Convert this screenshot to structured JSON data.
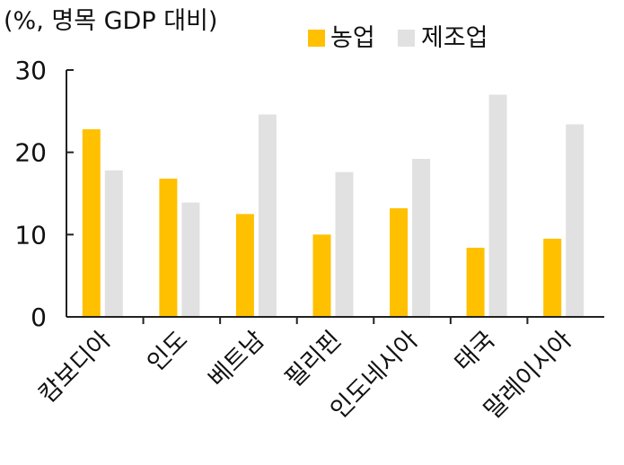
{
  "chart_data": {
    "type": "bar",
    "unit_label": "(%, 명목 GDP 대비)",
    "categories": [
      "캄보디아",
      "인도",
      "베트남",
      "필리핀",
      "인도네시아",
      "태국",
      "말레이시아"
    ],
    "series": [
      {
        "name": "농업",
        "color": "#FFC000",
        "values": [
          22.8,
          16.8,
          12.5,
          10.0,
          13.2,
          8.4,
          9.5
        ]
      },
      {
        "name": "제조업",
        "color": "#E1E1E1",
        "values": [
          17.8,
          13.9,
          24.6,
          17.6,
          19.2,
          27.0,
          23.4
        ]
      }
    ],
    "ylim": [
      0,
      30
    ],
    "yticks": [
      0,
      10,
      20,
      30
    ],
    "ytick_labels": [
      "0",
      "10",
      "20",
      "30"
    ],
    "grid": false,
    "legend_position": "top-right"
  }
}
